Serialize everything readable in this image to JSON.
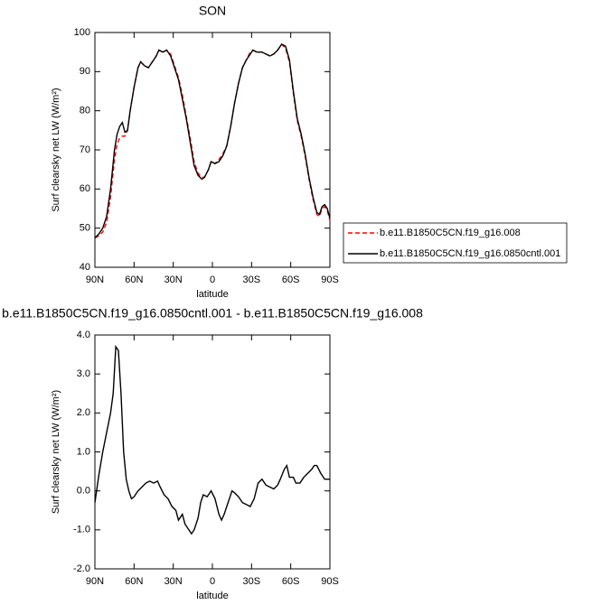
{
  "chart_data": [
    {
      "type": "line",
      "title": "SON",
      "x_label": "latitude",
      "y_label": "Surf clearsky net LW (W/m²)",
      "xlim": [
        90,
        -90
      ],
      "xticks": [
        {
          "value": 90,
          "label": "90N"
        },
        {
          "value": 60,
          "label": "60N"
        },
        {
          "value": 30,
          "label": "30N"
        },
        0,
        {
          "value": -30,
          "label": "30S"
        },
        {
          "value": -60,
          "label": "60S"
        },
        {
          "value": -90,
          "label": "90S"
        }
      ],
      "ylim": [
        40,
        100
      ],
      "yticks": [
        40,
        50,
        60,
        70,
        80,
        90,
        100
      ],
      "legend": "outside right",
      "x": [
        90,
        87,
        84,
        81,
        78,
        75,
        73,
        71,
        69,
        67,
        65,
        63,
        60,
        57,
        55,
        52,
        49,
        46,
        43,
        41,
        38,
        35,
        32,
        29,
        26,
        23,
        20,
        17,
        14,
        11,
        8,
        6,
        3,
        1,
        -2,
        -5,
        -8,
        -11,
        -14,
        -17,
        -20,
        -23,
        -26,
        -29,
        -31,
        -34,
        -38,
        -41,
        -44,
        -47,
        -50,
        -53,
        -56,
        -59,
        -62,
        -65,
        -68,
        -71,
        -74,
        -77,
        -80,
        -82,
        -84,
        -86,
        -88,
        -90
      ],
      "series": [
        {
          "name": "b.e11.B1850C5CN.f19_g16.008",
          "color": "#ff0000",
          "line_style": "dashed",
          "values": [
            47.5,
            48,
            49,
            51.5,
            58,
            67.5,
            71.5,
            73,
            73.5,
            73.5,
            75,
            80,
            86,
            91,
            92.5,
            91.5,
            91,
            92.5,
            94,
            95.5,
            95,
            95.5,
            94.5,
            91.5,
            88.5,
            84,
            78.5,
            73,
            67,
            64,
            63,
            63,
            65,
            67,
            66.5,
            67.5,
            69,
            71,
            76,
            82,
            87,
            91,
            93,
            95,
            95.5,
            95,
            95,
            94.5,
            94,
            94.5,
            95.5,
            97,
            96,
            92.5,
            84.5,
            77.5,
            73.5,
            68.5,
            62.5,
            57.5,
            53.5,
            53,
            55,
            55.5,
            54.5,
            52
          ]
        },
        {
          "name": "b.e11.B1850C5CN.f19_g16.0850cntl.001",
          "color": "#000000",
          "line_style": "solid",
          "values": [
            47.5,
            48.5,
            50,
            53,
            60,
            70,
            74,
            76,
            77,
            74.5,
            75,
            80,
            86,
            91,
            92.5,
            91.5,
            91,
            92.5,
            94,
            95.5,
            95,
            95.5,
            94,
            91,
            88,
            83,
            78,
            72,
            66,
            63.5,
            62.5,
            63,
            65,
            67,
            66.5,
            67,
            68.5,
            71,
            76,
            82,
            87,
            91,
            93,
            94.5,
            95.5,
            95,
            95,
            94.5,
            94,
            94.5,
            95.5,
            97,
            96.5,
            93,
            85,
            78,
            74,
            69,
            63,
            58,
            54,
            53.5,
            55.5,
            56,
            55,
            52.5
          ]
        }
      ]
    },
    {
      "type": "line",
      "title": "b.e11.B1850C5CN.f19_g16.0850cntl.001 - b.e11.B1850C5CN.f19_g16.008",
      "x_label": "latitude",
      "y_label": "Surf clearsky net LW (W/m²)",
      "xlim": [
        90,
        -90
      ],
      "xticks": [
        {
          "value": 90,
          "label": "90N"
        },
        {
          "value": 60,
          "label": "60N"
        },
        {
          "value": 30,
          "label": "30N"
        },
        0,
        {
          "value": -30,
          "label": "30S"
        },
        {
          "value": -60,
          "label": "60S"
        },
        {
          "value": -90,
          "label": "90S"
        }
      ],
      "ylim": [
        -2,
        4
      ],
      "yticks": [
        {
          "value": -2,
          "label": "-2.0"
        },
        {
          "value": -1,
          "label": "-1.0"
        },
        {
          "value": 0,
          "label": "0.0"
        },
        {
          "value": 1,
          "label": "1.0"
        },
        {
          "value": 2,
          "label": "2.0"
        },
        {
          "value": 3,
          "label": "3.0"
        },
        {
          "value": 4,
          "label": "4.0"
        }
      ],
      "x": [
        90,
        87,
        84,
        81,
        78,
        76,
        74,
        72,
        70,
        68,
        66,
        64,
        62,
        60,
        57,
        54,
        51,
        48,
        45,
        42,
        40,
        37,
        34,
        31,
        28,
        26,
        23,
        21,
        18,
        16,
        14,
        11,
        9,
        7,
        4,
        1,
        -2,
        -5,
        -7,
        -9,
        -12,
        -15,
        -17,
        -20,
        -23,
        -26,
        -29,
        -32,
        -35,
        -38,
        -41,
        -44,
        -47,
        -50,
        -52,
        -55,
        -57,
        -59,
        -62,
        -64,
        -67,
        -70,
        -73,
        -76,
        -78,
        -80,
        -83,
        -86,
        -88,
        -90
      ],
      "series": [
        {
          "color": "#000000",
          "line_style": "solid",
          "values": [
            -0.3,
            0.4,
            1.0,
            1.5,
            2.0,
            2.5,
            3.7,
            3.6,
            2.5,
            1.0,
            0.3,
            0.0,
            -0.2,
            -0.15,
            0.0,
            0.1,
            0.2,
            0.25,
            0.2,
            0.25,
            0.1,
            -0.1,
            -0.2,
            -0.4,
            -0.5,
            -0.75,
            -0.6,
            -0.85,
            -1.0,
            -1.1,
            -1.0,
            -0.7,
            -0.3,
            -0.1,
            -0.15,
            0.0,
            -0.2,
            -0.6,
            -0.75,
            -0.6,
            -0.3,
            0.0,
            -0.05,
            -0.15,
            -0.3,
            -0.35,
            -0.4,
            -0.2,
            0.2,
            0.3,
            0.15,
            0.1,
            0.05,
            0.15,
            0.3,
            0.55,
            0.65,
            0.35,
            0.35,
            0.2,
            0.2,
            0.35,
            0.45,
            0.55,
            0.65,
            0.65,
            0.45,
            0.3,
            0.3,
            0.3
          ]
        }
      ]
    }
  ]
}
